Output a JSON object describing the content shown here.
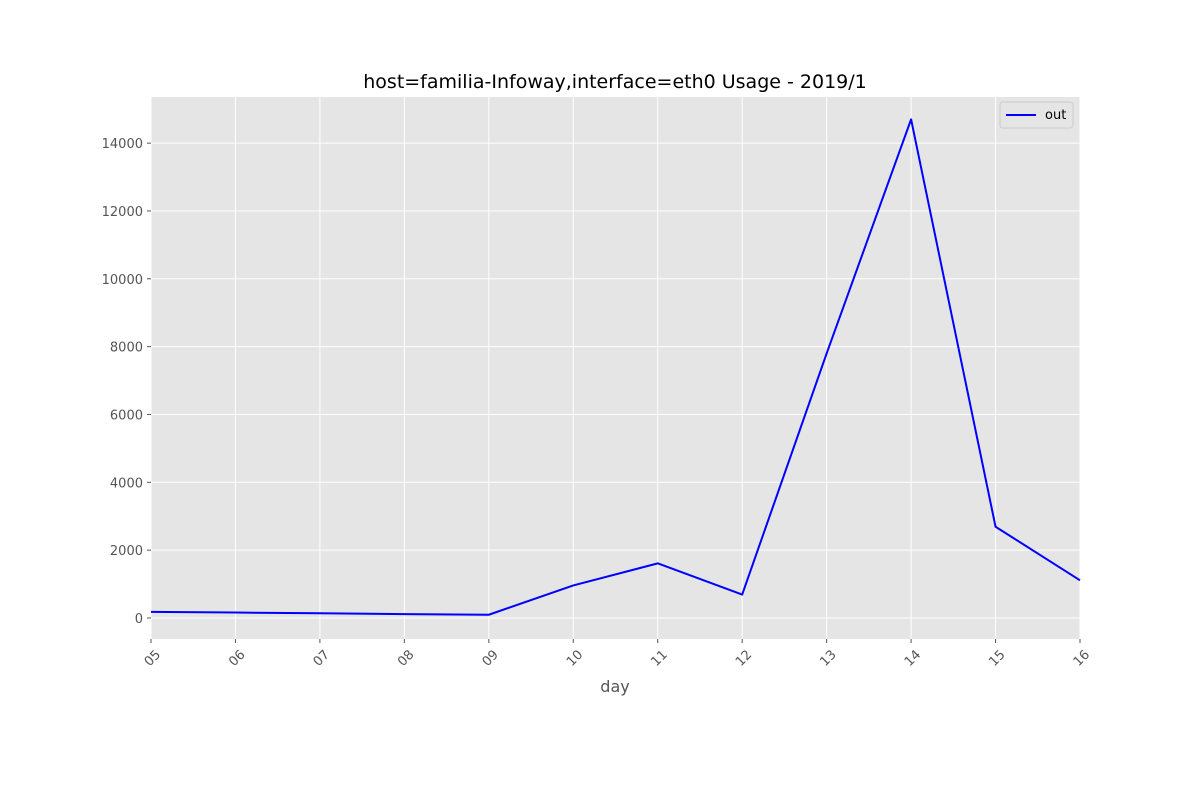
{
  "colors": {
    "plot_background": "#E5E5E5",
    "grid": "#FFFFFF",
    "series_out": "#0000FF",
    "tick_text": "#555555",
    "tick_mark": "#555555",
    "title_text": "#000000"
  },
  "chart_data": {
    "type": "line",
    "title": "host=familia-Infoway,interface=eth0 Usage - 2019/1",
    "xlabel": "day",
    "ylabel": "",
    "categories": [
      "05",
      "06",
      "07",
      "08",
      "09",
      "10",
      "11",
      "12",
      "13",
      "14",
      "15",
      "16"
    ],
    "series": [
      {
        "name": "out",
        "values": [
          180,
          160,
          140,
          115,
          95,
          960,
          1610,
          690,
          7800,
          14700,
          2690,
          1110
        ]
      }
    ],
    "ylim": [
      -620,
      15360
    ],
    "yticks": [
      0,
      2000,
      4000,
      6000,
      8000,
      10000,
      12000,
      14000
    ],
    "grid": true,
    "legend_position": "top-right",
    "style": "ggplot"
  }
}
